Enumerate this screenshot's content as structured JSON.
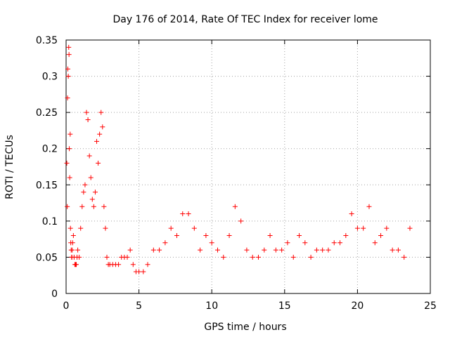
{
  "chart_data": {
    "type": "scatter",
    "title": "Day 176 of 2014, Rate Of TEC Index for receiver lome",
    "xlabel": "GPS time / hours",
    "ylabel": "ROTI / TECUs",
    "xlim": [
      0,
      25
    ],
    "ylim": [
      0,
      0.35
    ],
    "x_ticks": [
      "0",
      "5",
      "10",
      "15",
      "20",
      "25"
    ],
    "y_ticks": [
      "0",
      "0.05",
      "0.1",
      "0.15",
      "0.2",
      "0.25",
      "0.3",
      "0.35"
    ],
    "grid": true,
    "marker": "+",
    "color": "#ff0000",
    "series": [
      {
        "values_x": [
          0.05,
          0.08,
          0.1,
          0.12,
          0.15,
          0.18,
          0.2,
          0.22,
          0.25,
          0.28,
          0.3,
          0.32,
          0.35,
          0.38,
          0.4,
          0.42,
          0.45,
          0.5,
          0.55,
          0.6,
          0.65,
          0.7,
          0.75,
          0.8,
          0.9,
          1.0,
          1.1,
          1.2,
          1.3,
          1.4,
          1.5,
          1.6,
          1.7,
          1.8,
          1.9,
          2.0,
          2.1,
          2.2,
          2.3,
          2.4,
          2.5,
          2.6,
          2.7,
          2.8,
          2.9,
          3.0,
          3.2,
          3.4,
          3.6,
          3.8,
          4.0,
          4.2,
          4.4,
          4.6,
          4.8,
          5.0,
          5.3,
          5.6,
          6.0,
          6.4,
          6.8,
          7.2,
          7.6,
          8.0,
          8.4,
          8.8,
          9.2,
          9.6,
          10.0,
          10.4,
          10.8,
          11.2,
          11.6,
          12.0,
          12.4,
          12.8,
          13.2,
          13.6,
          14.0,
          14.4,
          14.8,
          15.2,
          15.6,
          16.0,
          16.4,
          16.8,
          17.2,
          17.6,
          18.0,
          18.4,
          18.8,
          19.2,
          19.6,
          20.0,
          20.4,
          20.8,
          21.2,
          21.6,
          22.0,
          22.4,
          22.8,
          23.2,
          23.6
        ],
        "values_y": [
          0.18,
          0.12,
          0.27,
          0.31,
          0.3,
          0.34,
          0.33,
          0.2,
          0.16,
          0.22,
          0.09,
          0.07,
          0.06,
          0.05,
          0.05,
          0.06,
          0.07,
          0.08,
          0.05,
          0.04,
          0.04,
          0.04,
          0.05,
          0.06,
          0.05,
          0.09,
          0.12,
          0.14,
          0.15,
          0.25,
          0.24,
          0.19,
          0.16,
          0.13,
          0.12,
          0.14,
          0.21,
          0.18,
          0.22,
          0.25,
          0.23,
          0.12,
          0.09,
          0.05,
          0.04,
          0.04,
          0.04,
          0.04,
          0.04,
          0.05,
          0.05,
          0.05,
          0.06,
          0.04,
          0.03,
          0.03,
          0.03,
          0.04,
          0.06,
          0.06,
          0.07,
          0.09,
          0.08,
          0.11,
          0.11,
          0.09,
          0.06,
          0.08,
          0.07,
          0.06,
          0.05,
          0.08,
          0.12,
          0.1,
          0.06,
          0.05,
          0.05,
          0.06,
          0.08,
          0.06,
          0.06,
          0.07,
          0.05,
          0.08,
          0.07,
          0.05,
          0.06,
          0.06,
          0.06,
          0.07,
          0.07,
          0.08,
          0.11,
          0.09,
          0.09,
          0.12,
          0.07,
          0.08,
          0.09,
          0.06,
          0.06,
          0.05,
          0.09
        ]
      }
    ]
  }
}
